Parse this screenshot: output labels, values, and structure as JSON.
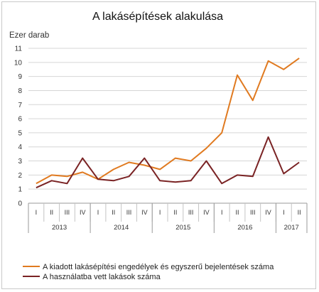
{
  "chart_data": {
    "type": "line",
    "title": "A lakásépítések alakulása",
    "ylabel": "Ezer darab",
    "ylim": [
      0,
      11
    ],
    "yticks": [
      0,
      1,
      2,
      3,
      4,
      5,
      6,
      7,
      8,
      9,
      10,
      11
    ],
    "grid": true,
    "legend_position": "bottom",
    "categories": [
      "2013 I",
      "2013 II",
      "2013 III",
      "2013 IV",
      "2014 I",
      "2014 II",
      "2014 III",
      "2014 IV",
      "2015 I",
      "2015 II",
      "2015 III",
      "2015 IV",
      "2016 I",
      "2016 II",
      "2016 III",
      "2016 IV",
      "2017 I",
      "2017 II"
    ],
    "quarter_labels": [
      "I",
      "II",
      "III",
      "IV",
      "I",
      "II",
      "III",
      "IV",
      "I",
      "II",
      "III",
      "IV",
      "I",
      "II",
      "III",
      "IV",
      "I",
      "II"
    ],
    "years": [
      {
        "label": "2013",
        "quarters": 4
      },
      {
        "label": "2014",
        "quarters": 4
      },
      {
        "label": "2015",
        "quarters": 4
      },
      {
        "label": "2016",
        "quarters": 4
      },
      {
        "label": "2017",
        "quarters": 2
      }
    ],
    "series": [
      {
        "name": "A kiadott lakásépítési engedélyek és egyszerű bejelentések száma",
        "color": "#e07a20",
        "values": [
          1.4,
          2.0,
          1.9,
          2.2,
          1.7,
          2.4,
          2.9,
          2.7,
          2.4,
          3.2,
          3.0,
          3.9,
          5.0,
          9.1,
          7.3,
          10.1,
          9.5,
          10.3
        ]
      },
      {
        "name": "A használatba vett lakások száma",
        "color": "#7a2324",
        "values": [
          1.1,
          1.6,
          1.4,
          3.2,
          1.7,
          1.6,
          1.9,
          3.2,
          1.6,
          1.5,
          1.6,
          3.0,
          1.4,
          2.0,
          1.9,
          4.7,
          2.1,
          2.9
        ]
      }
    ]
  }
}
